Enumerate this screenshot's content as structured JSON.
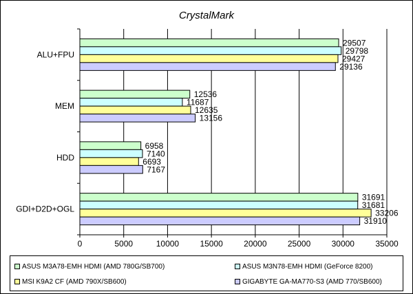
{
  "chart_data": {
    "type": "bar",
    "orientation": "horizontal",
    "title": "CrystalMark",
    "categories": [
      "ALU+FPU",
      "MEM",
      "HDD",
      "GDI+D2D+OGL"
    ],
    "series": [
      {
        "name": "ASUS M3A78-EMH HDMI (AMD 780G/SB700)",
        "color": "#ccffcc",
        "values": [
          29507,
          12536,
          6958,
          31691
        ]
      },
      {
        "name": "ASUS M3N78-EMH HDMI (GeForce 8200)",
        "color": "#ccffff",
        "values": [
          29798,
          11687,
          7140,
          31681
        ]
      },
      {
        "name": "MSI K9A2 CF (AMD 790X/SB600)",
        "color": "#ffff99",
        "values": [
          29427,
          12635,
          6693,
          33206
        ]
      },
      {
        "name": "GIGABYTE GA-MA770-S3 (AMD 770/SB600)",
        "color": "#ccccff",
        "values": [
          29136,
          13156,
          7167,
          31910
        ]
      }
    ],
    "xlim": [
      0,
      35000
    ],
    "xticks": [
      0,
      5000,
      10000,
      15000,
      20000,
      25000,
      30000,
      35000
    ],
    "grid": true,
    "legend_position": "bottom"
  }
}
